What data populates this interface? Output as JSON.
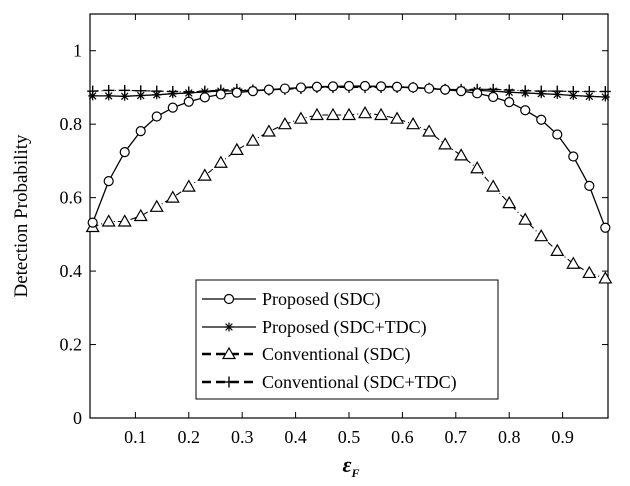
{
  "chart_data": {
    "type": "line",
    "title": "",
    "xlabel": "ε_F",
    "ylabel": "Detection Probability",
    "xlim": [
      0.015,
      0.985
    ],
    "ylim": [
      0,
      1.1
    ],
    "xticks": [
      0.1,
      0.2,
      0.3,
      0.4,
      0.5,
      0.6,
      0.7,
      0.8,
      0.9
    ],
    "xtick_labels": [
      "0.1",
      "0.2",
      "0.3",
      "0.4",
      "0.5",
      "0.6",
      "0.7",
      "0.8",
      "0.9"
    ],
    "yticks": [
      0,
      0.2,
      0.4,
      0.6,
      0.8,
      1
    ],
    "ytick_labels": [
      "0",
      "0.2",
      "0.4",
      "0.6",
      "0.8",
      "1"
    ],
    "grid": false,
    "legend_position": "bottom-center",
    "series": [
      {
        "name": "Proposed (SDC)",
        "line": "solid",
        "marker": "circle",
        "x": [
          0.02,
          0.05,
          0.08,
          0.11,
          0.14,
          0.17,
          0.2,
          0.23,
          0.26,
          0.29,
          0.32,
          0.35,
          0.38,
          0.41,
          0.44,
          0.47,
          0.5,
          0.53,
          0.56,
          0.59,
          0.62,
          0.65,
          0.68,
          0.71,
          0.74,
          0.77,
          0.8,
          0.83,
          0.86,
          0.89,
          0.92,
          0.95,
          0.98
        ],
        "y": [
          0.532,
          0.645,
          0.724,
          0.781,
          0.821,
          0.845,
          0.861,
          0.873,
          0.881,
          0.886,
          0.89,
          0.894,
          0.897,
          0.9,
          0.902,
          0.903,
          0.904,
          0.904,
          0.903,
          0.902,
          0.9,
          0.897,
          0.894,
          0.89,
          0.884,
          0.874,
          0.86,
          0.838,
          0.812,
          0.772,
          0.712,
          0.632,
          0.518
        ]
      },
      {
        "name": "Proposed (SDC+TDC)",
        "line": "solid",
        "marker": "star",
        "x": [
          0.02,
          0.05,
          0.08,
          0.11,
          0.14,
          0.17,
          0.2,
          0.23,
          0.26,
          0.29,
          0.32,
          0.35,
          0.38,
          0.41,
          0.44,
          0.47,
          0.5,
          0.53,
          0.56,
          0.59,
          0.62,
          0.65,
          0.68,
          0.71,
          0.74,
          0.77,
          0.8,
          0.83,
          0.86,
          0.89,
          0.92,
          0.95,
          0.98
        ],
        "y": [
          0.877,
          0.877,
          0.876,
          0.878,
          0.88,
          0.883,
          0.885,
          0.888,
          0.89,
          0.891,
          0.892,
          0.894,
          0.897,
          0.899,
          0.901,
          0.902,
          0.903,
          0.903,
          0.902,
          0.901,
          0.899,
          0.897,
          0.895,
          0.893,
          0.892,
          0.89,
          0.887,
          0.885,
          0.883,
          0.881,
          0.878,
          0.876,
          0.874
        ]
      },
      {
        "name": "Conventional (SDC)",
        "line": "dashed",
        "marker": "triangle",
        "x": [
          0.02,
          0.05,
          0.08,
          0.11,
          0.14,
          0.17,
          0.2,
          0.23,
          0.26,
          0.29,
          0.32,
          0.35,
          0.38,
          0.41,
          0.44,
          0.47,
          0.5,
          0.53,
          0.56,
          0.59,
          0.62,
          0.65,
          0.68,
          0.71,
          0.74,
          0.77,
          0.8,
          0.83,
          0.86,
          0.89,
          0.92,
          0.95,
          0.98
        ],
        "y": [
          0.52,
          0.535,
          0.535,
          0.55,
          0.575,
          0.6,
          0.63,
          0.66,
          0.695,
          0.73,
          0.755,
          0.78,
          0.8,
          0.815,
          0.825,
          0.825,
          0.825,
          0.83,
          0.825,
          0.815,
          0.8,
          0.78,
          0.745,
          0.715,
          0.68,
          0.63,
          0.585,
          0.54,
          0.495,
          0.455,
          0.42,
          0.395,
          0.38
        ]
      },
      {
        "name": "Conventional (SDC+TDC)",
        "line": "dashed",
        "marker": "plus",
        "x": [
          0.02,
          0.05,
          0.08,
          0.11,
          0.14,
          0.17,
          0.2,
          0.23,
          0.26,
          0.29,
          0.32,
          0.35,
          0.38,
          0.41,
          0.44,
          0.47,
          0.5,
          0.53,
          0.56,
          0.59,
          0.62,
          0.65,
          0.68,
          0.71,
          0.74,
          0.77,
          0.8,
          0.83,
          0.86,
          0.89,
          0.92,
          0.95,
          0.98
        ],
        "y": [
          0.89,
          0.892,
          0.892,
          0.891,
          0.89,
          0.889,
          0.888,
          0.89,
          0.893,
          0.895,
          0.893,
          0.893,
          0.895,
          0.897,
          0.9,
          0.9,
          0.9,
          0.9,
          0.9,
          0.9,
          0.9,
          0.898,
          0.895,
          0.895,
          0.895,
          0.895,
          0.893,
          0.891,
          0.89,
          0.89,
          0.889,
          0.889,
          0.889
        ]
      }
    ]
  },
  "colors": {
    "line": "#000000",
    "background": "#ffffff"
  }
}
